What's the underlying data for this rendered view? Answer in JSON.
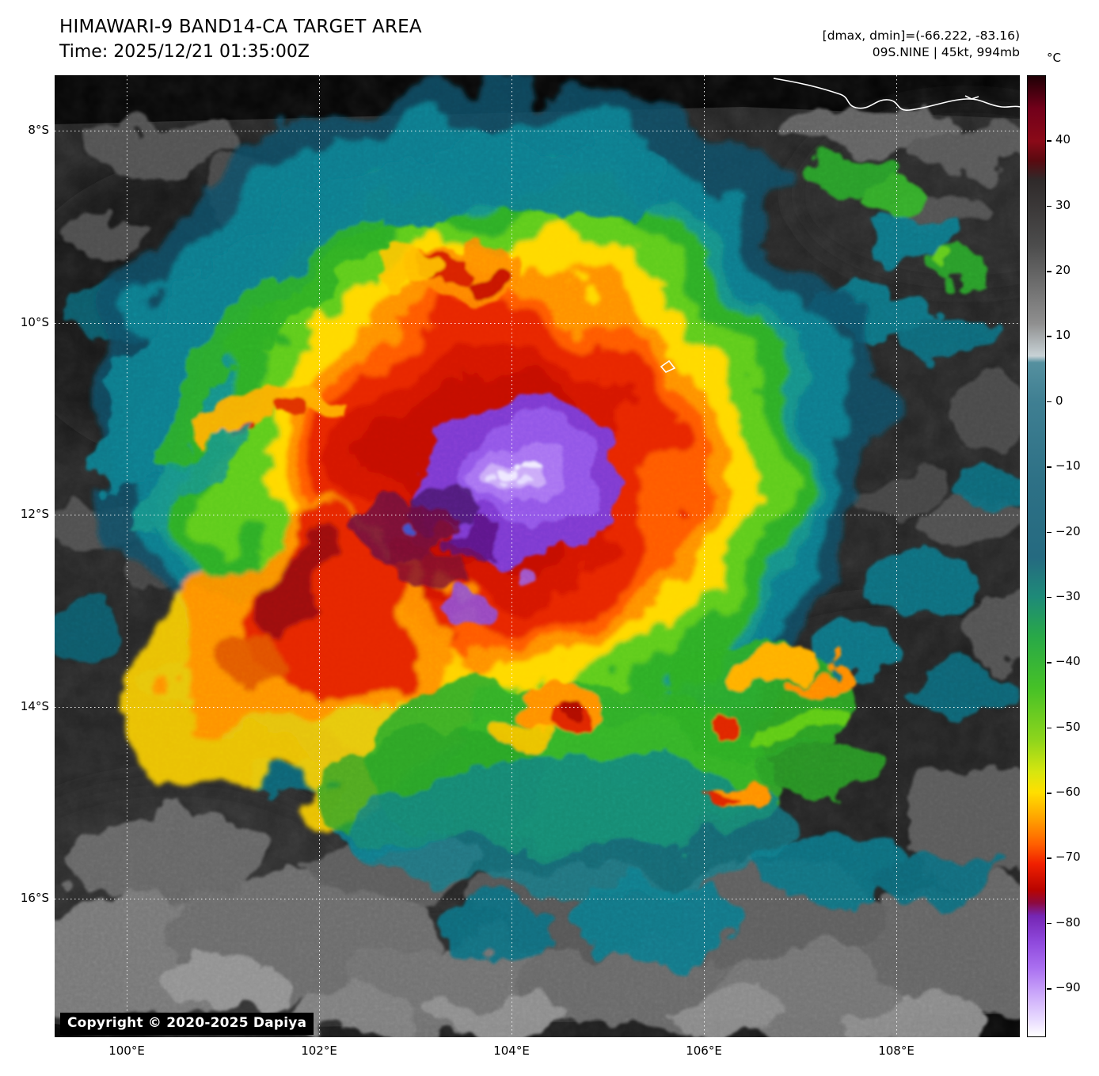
{
  "header": {
    "title": "HIMAWARI-9 BAND14-CA TARGET AREA",
    "time_line": "Time: 2025/12/21 01:35:00Z",
    "dmax_dmin_line": "[dmax, dmin]=(-66.222, -83.16)",
    "storm_line": "09S.NINE | 45kt, 994mb"
  },
  "plot": {
    "copyright": "Copyright © 2020-2025 Dapiya",
    "lat_ticks": [
      {
        "label": "8°S",
        "deg": 8
      },
      {
        "label": "10°S",
        "deg": 10
      },
      {
        "label": "12°S",
        "deg": 12
      },
      {
        "label": "14°S",
        "deg": 14
      },
      {
        "label": "16°S",
        "deg": 16
      }
    ],
    "lon_ticks": [
      {
        "label": "100°E",
        "deg": 100
      },
      {
        "label": "102°E",
        "deg": 102
      },
      {
        "label": "104°E",
        "deg": 104
      },
      {
        "label": "106°E",
        "deg": 106
      },
      {
        "label": "108°E",
        "deg": 108
      }
    ]
  },
  "colorbar": {
    "unit": "°C",
    "top_value": 50,
    "bottom_value": -97.5,
    "ticks": [
      40,
      30,
      20,
      10,
      0,
      -10,
      -20,
      -30,
      -40,
      -50,
      -60,
      -70,
      -80,
      -90
    ],
    "stops": [
      {
        "t": 50,
        "color": "#1f0005"
      },
      {
        "t": 45,
        "color": "#72001a"
      },
      {
        "t": 40,
        "color": "#8a0a18"
      },
      {
        "t": 37,
        "color": "#5a0a10"
      },
      {
        "t": 34,
        "color": "#2f2a2a"
      },
      {
        "t": 24,
        "color": "#4c4c4c"
      },
      {
        "t": 12,
        "color": "#8f8f8f"
      },
      {
        "t": 7,
        "color": "#c8d2d6"
      },
      {
        "t": 6,
        "color": "#55909f"
      },
      {
        "t": 0,
        "color": "#3f7f92"
      },
      {
        "t": -12,
        "color": "#2e7186"
      },
      {
        "t": -24,
        "color": "#256a80"
      },
      {
        "t": -30,
        "color": "#1e8a78"
      },
      {
        "t": -36,
        "color": "#28a848"
      },
      {
        "t": -44,
        "color": "#46c127"
      },
      {
        "t": -52,
        "color": "#8ed51c"
      },
      {
        "t": -57,
        "color": "#d8e60f"
      },
      {
        "t": -60,
        "color": "#ffdf00"
      },
      {
        "t": -64,
        "color": "#ffa300"
      },
      {
        "t": -68,
        "color": "#ff5f00"
      },
      {
        "t": -71,
        "color": "#f02000"
      },
      {
        "t": -75,
        "color": "#b80400"
      },
      {
        "t": -77,
        "color": "#8c0a40"
      },
      {
        "t": -79,
        "color": "#7526b4"
      },
      {
        "t": -83,
        "color": "#8f49dc"
      },
      {
        "t": -87,
        "color": "#aa70f0"
      },
      {
        "t": -91,
        "color": "#cba8fa"
      },
      {
        "t": -95,
        "color": "#e9dcff"
      },
      {
        "t": -97.5,
        "color": "#ffffff"
      }
    ]
  },
  "chart_data": {
    "type": "heatmap",
    "title": "HIMAWARI-9 BAND14-CA TARGET AREA",
    "subtitle": "Time: 2025/12/21 01:35:00Z",
    "satellite": "HIMAWARI-9",
    "band": "BAND14-CA",
    "time_utc": "2025/12/21 01:35:00Z",
    "dmax_c": -66.222,
    "dmin_c": -83.16,
    "storm_id": "09S.NINE",
    "intensity_kt": 45,
    "pressure_mb": 994,
    "x_axis": {
      "tick_labels": [
        "100°E",
        "102°E",
        "104°E",
        "106°E",
        "108°E"
      ],
      "deg": [
        100,
        102,
        104,
        106,
        108
      ],
      "range_deg": [
        99.25,
        109.28
      ]
    },
    "y_axis": {
      "tick_labels": [
        "8°S",
        "10°S",
        "12°S",
        "14°S",
        "16°S"
      ],
      "deg": [
        -8,
        -10,
        -12,
        -14,
        -16
      ],
      "range_deg": [
        -7.42,
        -17.44
      ]
    },
    "colorbar_unit": "°C",
    "colorbar_ticks_c": [
      40,
      30,
      20,
      10,
      0,
      -10,
      -20,
      -30,
      -40,
      -50,
      -60,
      -70,
      -80,
      -90
    ],
    "legend_position": "right",
    "grid": "white dotted lat/lon grid",
    "depicts": "Infrared brightness-temperature image of tropical cyclone 09S with violet cold cloud tops near -85°C centered near 104.1°E 11.6°S, surrounded by red/orange/yellow/green/teal rings, gray low clouds and dark warm ocean; Java coastline outlined in white at top right"
  }
}
